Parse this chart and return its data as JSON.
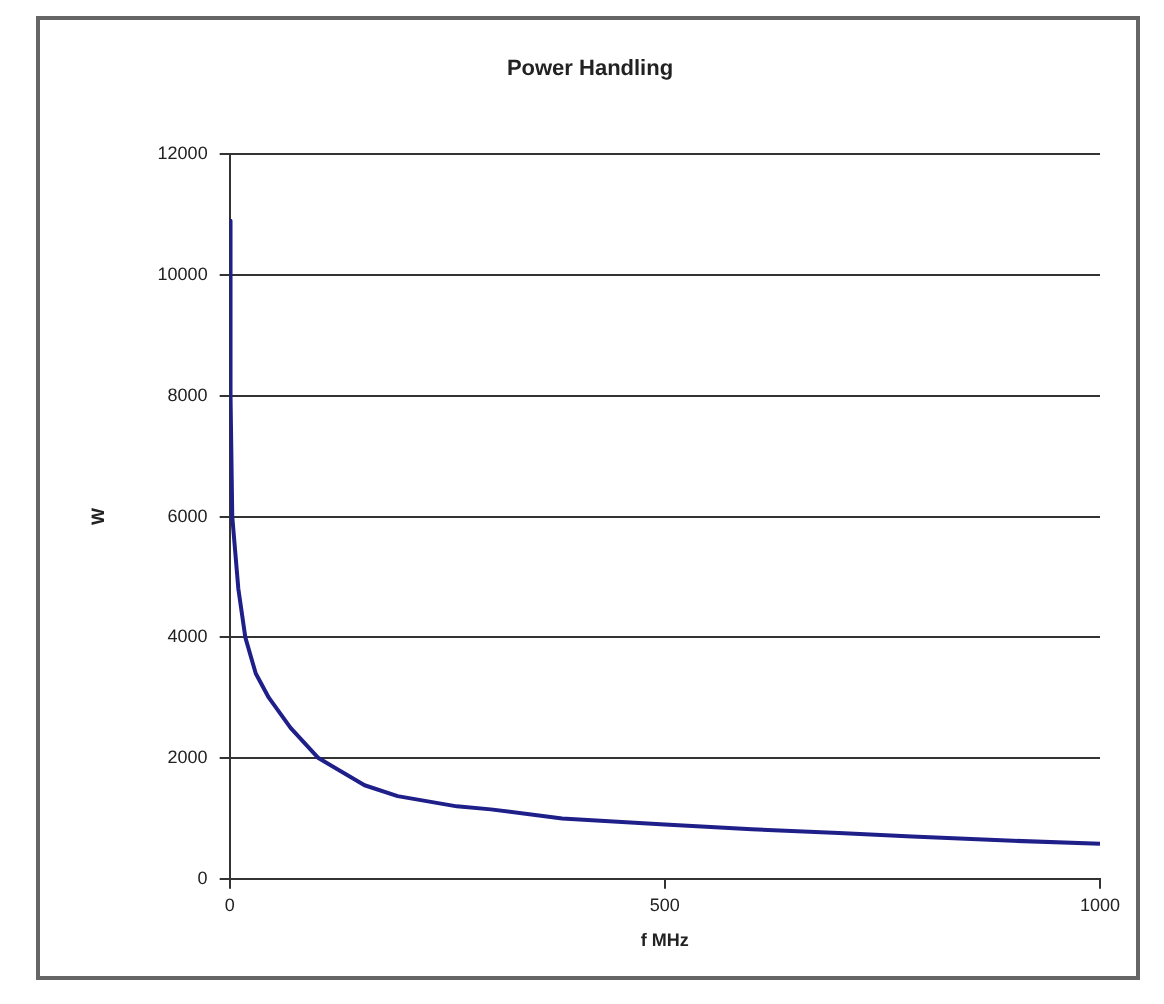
{
  "chart_data": {
    "type": "line",
    "title": "Power Handling",
    "xlabel": "f MHz",
    "ylabel": "W",
    "xlim": [
      0,
      1000
    ],
    "xticks": [
      0,
      500,
      1000
    ],
    "ylim": [
      0,
      12000
    ],
    "yticks": [
      0,
      2000,
      4000,
      6000,
      8000,
      10000,
      12000
    ],
    "grid": "y",
    "legend": false,
    "marker": "none",
    "line_style": "solid",
    "series": [
      {
        "color": "#1f1f8a",
        "x": [
          0.5,
          1,
          3,
          10,
          18,
          30,
          45,
          70,
          102,
          155,
          193,
          261,
          300,
          382,
          500,
          600,
          700,
          784,
          900,
          1000
        ],
        "values": [
          10900,
          8000,
          6000,
          4800,
          4000,
          3400,
          3000,
          2500,
          2000,
          1550,
          1370,
          1200,
          1150,
          1000,
          900,
          820,
          760,
          700,
          630,
          580
        ]
      }
    ]
  }
}
